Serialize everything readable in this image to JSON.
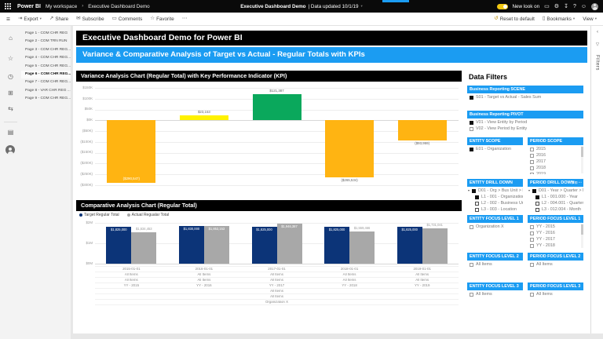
{
  "colors": {
    "accent_blue": "#1B9CF2",
    "bar_orange": "#FFB412",
    "bar_yellow": "#FFF200",
    "bar_green": "#0AA85C",
    "bar_navy": "#0C3478",
    "bar_gray": "#A8A8A8",
    "toggle_yellow": "#F2C811"
  },
  "icons": {
    "hamburger": "≡",
    "export": "⇥",
    "share": "↗",
    "subscribe": "✉",
    "comments": "▭",
    "favorite": "☆",
    "more": "⋯",
    "reset": "↺",
    "bookmarks": "▯",
    "chevron_down": "▾",
    "breadcrumb_sep": "›",
    "home": "⌂",
    "favorites": "☆",
    "recent": "◷",
    "apps": "⊞",
    "shared": "⇆",
    "workspaces": "▤",
    "feedback": "▭",
    "settings": "⚙",
    "download": "↧",
    "help": "?",
    "smiley": "☺",
    "collapse": "‹",
    "funnel": "▽",
    "expand": "⊡"
  },
  "top_bar": {
    "app_name": "Power BI",
    "workspace": "My workspace",
    "report_name": "Executive Dashboard Demo",
    "center_report": "Executive Dashboard Demo",
    "center_updated": "| Data updated 10/1/19",
    "new_look_label": "New look on",
    "right_icons": [
      "feedback",
      "settings",
      "download",
      "help",
      "smiley"
    ]
  },
  "toolbar": {
    "left": [
      {
        "label": "Export",
        "icon": "export",
        "chevron": true
      },
      {
        "label": "Share",
        "icon": "share"
      },
      {
        "label": "Subscribe",
        "icon": "subscribe"
      },
      {
        "label": "Comments",
        "icon": "comments"
      },
      {
        "label": "Favorite",
        "icon": "favorite"
      },
      {
        "label": "",
        "icon": "more"
      }
    ],
    "right": [
      {
        "label": "Reset to default",
        "icon": "reset",
        "gold": true
      },
      {
        "label": "Bookmarks",
        "icon": "bookmarks",
        "chevron": true
      },
      {
        "label": "View",
        "chevron": true
      }
    ]
  },
  "nav_rail": {
    "primary": [
      "home",
      "favorites",
      "recent",
      "apps",
      "shared"
    ],
    "secondary": [
      "workspaces"
    ],
    "workspace_avatar": "my-workspace"
  },
  "sidebar": {
    "pages": [
      {
        "label": "Page 1 - COM CHR REG",
        "selected": false
      },
      {
        "label": "Page 2 - COM TRN RUN",
        "selected": false
      },
      {
        "label": "Page 3 - COM CHR REG...",
        "selected": false
      },
      {
        "label": "Page 4 - COM CHR REG...",
        "selected": false
      },
      {
        "label": "Page 5 - COM CHR REG...",
        "selected": false
      },
      {
        "label": "Page 6 - COM CHR REG...",
        "selected": true
      },
      {
        "label": "Page 7 - COM CHR REG...",
        "selected": false
      },
      {
        "label": "Page 8 - VAR CHR REG ...",
        "selected": false
      },
      {
        "label": "Page 9 - COM CHR REG...",
        "selected": false
      }
    ]
  },
  "report": {
    "title": "Executive Dashboard Demo for Power BI",
    "subtitle": "Variance & Comparative Analysis of Target vs Actual - Regular Totals with KPIs"
  },
  "chart_data": [
    {
      "type": "bar",
      "title": "Variance Analysis Chart (Regular Total) with Key Performance Indicator (KPI)",
      "ylim": [
        -300000,
        150000
      ],
      "ytick_labels": [
        "$150K",
        "$100K",
        "$50K",
        "$0K",
        "($50K)",
        "($100K)",
        "($150K)",
        "($200K)",
        "($250K)",
        "($300K)"
      ],
      "values": [
        -290547,
        23153,
        121387,
        -265534,
        -93959
      ],
      "labels": [
        "($290,547)",
        "$23,153",
        "$121,387",
        "($265,534)",
        "($93,959)"
      ],
      "colors": [
        "#FFB412",
        "#FFF200",
        "#0AA85C",
        "#FFB412",
        "#FFB412"
      ],
      "grid": true,
      "legend_position": "none"
    },
    {
      "type": "grouped-bar",
      "title": "Comparative Analysis Chart (Regular Total)",
      "ylim": [
        0,
        2000000
      ],
      "ytick_labels": [
        "$2M",
        "$1M",
        "$0M"
      ],
      "series": [
        {
          "name": "Target Regular Total",
          "color": "#0C3478",
          "values": [
            1825000,
            1830000,
            1825000,
            1825000,
            1825000
          ],
          "labels": [
            "$1,825,000",
            "$1,830,000",
            "$1,825,000",
            "$1,825,000",
            "$1,825,000"
          ]
        },
        {
          "name": "Actual Regualar Total",
          "color": "#A8A8A8",
          "values": [
            1534453,
            1853153,
            1946387,
            1559466,
            1731041
          ],
          "labels": [
            "$1,534,453",
            "$1,853,153",
            "$1,946,387",
            "$1,559,466",
            "$1,731,041"
          ]
        }
      ],
      "x_axis_rows": [
        [
          "2015-01-01",
          "2016-01-01",
          "2017-01-01",
          "2018-01-01",
          "2019-01-01"
        ],
        [
          "All Items",
          "All Items",
          "All Items",
          "All Items",
          "All Items"
        ],
        [
          "All Items",
          "All Items",
          "All Items",
          "All Items",
          "All Items"
        ],
        [
          "YY - 2015",
          "YY - 2016",
          "YY - 2017",
          "YY - 2018",
          "YY - 2019"
        ]
      ],
      "x_axis_footer_rows": [
        "All Items",
        "All Items",
        "Organization X"
      ],
      "grid": true,
      "legend_position": "top-left"
    }
  ],
  "filters": {
    "title": "Data Filters",
    "rows": [
      {
        "kind": "full",
        "header": "Business Reporting SCENE",
        "items": [
          {
            "label": "S01 - Target vs Actual - Sales Sum",
            "checked": true
          }
        ]
      },
      {
        "kind": "full",
        "header": "Business Reporting PIVOT",
        "items": [
          {
            "label": "V01 - View Entity by Period",
            "checked": true
          },
          {
            "label": "V02 - View Period by Entity",
            "checked": false
          }
        ]
      },
      {
        "kind": "pair",
        "left": {
          "header": "ENTITY SCOPE",
          "items": [
            {
              "label": "E01 - Organization",
              "checked": true
            }
          ]
        },
        "right": {
          "header": "PERIOD SCOPE",
          "scrollbar": true,
          "clip": 36,
          "items": [
            {
              "label": "2015"
            },
            {
              "label": "2016"
            },
            {
              "label": "2017"
            },
            {
              "label": "2018"
            },
            {
              "label": "2019"
            }
          ]
        }
      },
      {
        "kind": "pair",
        "left": {
          "header": "ENTITY DRILL DOWN",
          "items": [
            {
              "label": "D01 - Org > Bus Unit > Loc...",
              "checked": true,
              "parent": true
            },
            {
              "label": "L1 - 001 - Organization",
              "checked": true,
              "child": true
            },
            {
              "label": "L2 - 002 - Business Unit",
              "checked": false,
              "child": true,
              "bold_box": true
            },
            {
              "label": "L3 - 003 - Location",
              "checked": false,
              "child": true,
              "bold_box": true
            }
          ]
        },
        "right": {
          "header": "PERIOD DRILL DOWN",
          "hover_icons": true,
          "items": [
            {
              "label": "D01 - Year > Quarter > M...",
              "checked": true,
              "parent": true
            },
            {
              "label": "L1 - 001.000 - Year",
              "checked": true,
              "child": true
            },
            {
              "label": "L2 - 004.001 - Quarter",
              "checked": false,
              "child": true,
              "bold_box": true
            },
            {
              "label": "L3 - 012.004 - Month",
              "checked": false,
              "child": true,
              "bold_box": true
            }
          ]
        }
      },
      {
        "kind": "pair",
        "left": {
          "header": "ENTITY FOCUS LEVEL 1",
          "items": [
            {
              "label": "Organization X"
            }
          ]
        },
        "right": {
          "header": "PERIOD FOCUS LEVEL 1",
          "scrollbar": true,
          "clip": 33,
          "items": [
            {
              "label": "YY - 2015"
            },
            {
              "label": "YY - 2016"
            },
            {
              "label": "YY - 2017"
            },
            {
              "label": "YY - 2018"
            }
          ]
        }
      },
      {
        "kind": "pair",
        "left": {
          "header": "ENTITY FOCUS LEVEL 2",
          "items": [
            {
              "label": "All Items"
            }
          ]
        },
        "right": {
          "header": "PERIOD FOCUS LEVEL 2",
          "items": [
            {
              "label": "All Items"
            }
          ]
        }
      },
      {
        "kind": "pair",
        "left": {
          "header": "ENTITY FOCUS LEVEL 3",
          "items": [
            {
              "label": "All Items"
            }
          ]
        },
        "right": {
          "header": "PERIOD FOCUS LEVEL 3",
          "items": [
            {
              "label": "All Items"
            }
          ]
        }
      }
    ]
  },
  "filters_pane": {
    "label": "Filters"
  }
}
